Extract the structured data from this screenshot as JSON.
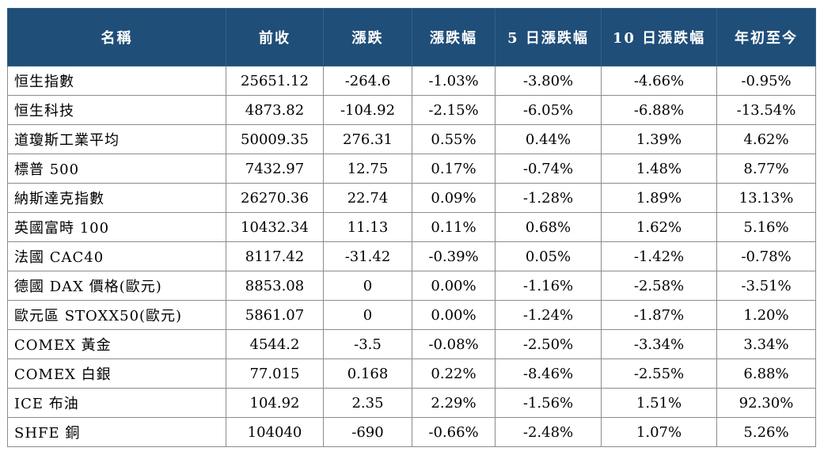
{
  "table": {
    "headers": [
      "名稱",
      "前收",
      "漲跌",
      "漲跌幅",
      "5 日漲跌幅",
      "10 日漲跌幅",
      "年初至今"
    ],
    "rows": [
      [
        "恒生指數",
        "25651.12",
        "-264.6",
        "-1.03%",
        "-3.80%",
        "-4.66%",
        "-0.95%"
      ],
      [
        "恒生科技",
        "4873.82",
        "-104.92",
        "-2.15%",
        "-6.05%",
        "-6.88%",
        "-13.54%"
      ],
      [
        "道瓊斯工業平均",
        "50009.35",
        "276.31",
        "0.55%",
        "0.44%",
        "1.39%",
        "4.62%"
      ],
      [
        "標普 500",
        "7432.97",
        "12.75",
        "0.17%",
        "-0.74%",
        "1.48%",
        "8.77%"
      ],
      [
        "納斯達克指數",
        "26270.36",
        "22.74",
        "0.09%",
        "-1.28%",
        "1.89%",
        "13.13%"
      ],
      [
        "英國富時 100",
        "10432.34",
        "11.13",
        "0.11%",
        "0.68%",
        "1.62%",
        "5.16%"
      ],
      [
        "法國 CAC40",
        "8117.42",
        "-31.42",
        "-0.39%",
        "0.05%",
        "-1.42%",
        "-0.78%"
      ],
      [
        "德國 DAX 價格(歐元)",
        "8853.08",
        "0",
        "0.00%",
        "-1.16%",
        "-2.58%",
        "-3.51%"
      ],
      [
        "歐元區 STOXX50(歐元)",
        "5861.07",
        "0",
        "0.00%",
        "-1.24%",
        "-1.87%",
        "1.20%"
      ],
      [
        "COMEX 黃金",
        "4544.2",
        "-3.5",
        "-0.08%",
        "-2.50%",
        "-3.34%",
        "3.34%"
      ],
      [
        "COMEX 白銀",
        "77.015",
        "0.168",
        "0.22%",
        "-8.46%",
        "-2.55%",
        "6.88%"
      ],
      [
        "ICE 布油",
        "104.92",
        "2.35",
        "2.29%",
        "-1.56%",
        "1.51%",
        "92.30%"
      ],
      [
        "SHFE 銅",
        "104040",
        "-690",
        "-0.66%",
        "-2.48%",
        "1.07%",
        "5.26%"
      ]
    ]
  },
  "colors": {
    "header_bg": "#1f4e79",
    "header_text": "#ffffff",
    "grid": "#8c8c8c"
  }
}
